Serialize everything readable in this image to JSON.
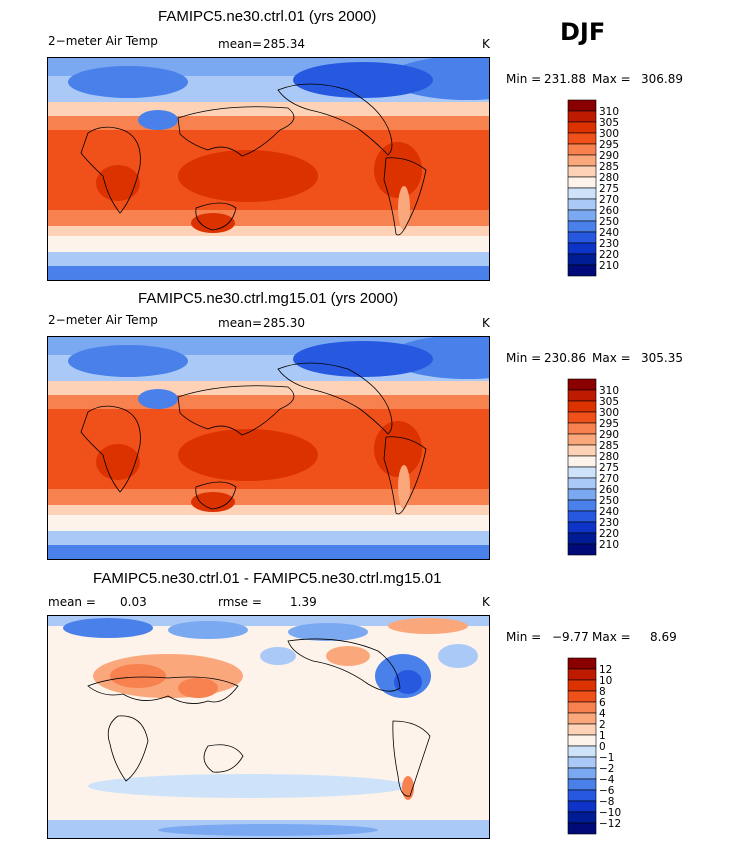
{
  "season": "DJF",
  "panels": [
    {
      "title": "FAMIPC5.ne30.ctrl.01 (yrs 2000)",
      "variable": "2−meter Air Temp",
      "stat1_label": "mean=",
      "stat1_value": "285.34",
      "stat2_label": "",
      "stat2_value": "",
      "units": "K",
      "min_label": "Min =",
      "min_value": "231.88",
      "max_label": "Max =",
      "max_value": "306.89",
      "colorbar_labels": [
        "310",
        "305",
        "300",
        "295",
        "290",
        "285",
        "280",
        "275",
        "270",
        "260",
        "250",
        "240",
        "230",
        "220",
        "210"
      ],
      "colorbar_colors": [
        "#8a0000",
        "#be1a00",
        "#dc3200",
        "#f05019",
        "#f7814f",
        "#fba77c",
        "#fdd2b7",
        "#fdf3ea",
        "#cee3fa",
        "#aac9f7",
        "#7aa8f1",
        "#4a80ea",
        "#2659e0",
        "#0d33c7",
        "#001c95",
        "#000a78"
      ]
    },
    {
      "title": "FAMIPC5.ne30.ctrl.mg15.01 (yrs 2000)",
      "variable": "2−meter Air Temp",
      "stat1_label": "mean=",
      "stat1_value": "285.30",
      "stat2_label": "",
      "stat2_value": "",
      "units": "K",
      "min_label": "Min =",
      "min_value": "230.86",
      "max_label": "Max =",
      "max_value": "305.35",
      "colorbar_labels": [
        "310",
        "305",
        "300",
        "295",
        "290",
        "285",
        "280",
        "275",
        "270",
        "260",
        "250",
        "240",
        "230",
        "220",
        "210"
      ],
      "colorbar_colors": [
        "#8a0000",
        "#be1a00",
        "#dc3200",
        "#f05019",
        "#f7814f",
        "#fba77c",
        "#fdd2b7",
        "#fdf3ea",
        "#cee3fa",
        "#aac9f7",
        "#7aa8f1",
        "#4a80ea",
        "#2659e0",
        "#0d33c7",
        "#001c95",
        "#000a78"
      ]
    },
    {
      "title": "FAMIPC5.ne30.ctrl.01 - FAMIPC5.ne30.ctrl.mg15.01",
      "variable": "",
      "stat1_label": "mean =",
      "stat1_value": "0.03",
      "stat2_label": "rmse =",
      "stat2_value": "1.39",
      "units": "K",
      "min_label": "Min =",
      "min_value": "−9.77",
      "max_label": "Max =",
      "max_value": "8.69",
      "colorbar_labels": [
        "12",
        "10",
        "8",
        "6",
        "4",
        "2",
        "1",
        "0",
        "−1",
        "−2",
        "−4",
        "−6",
        "−8",
        "−10",
        "−12"
      ],
      "colorbar_colors": [
        "#8a0000",
        "#be1a00",
        "#dc3200",
        "#f05019",
        "#f7814f",
        "#fba77c",
        "#fdd2b7",
        "#fdf3ea",
        "#cee3fa",
        "#aac9f7",
        "#7aa8f1",
        "#4a80ea",
        "#2659e0",
        "#0d33c7",
        "#001c95",
        "#000a78"
      ]
    }
  ],
  "chart_data": [
    {
      "type": "heatmap",
      "title": "FAMIPC5.ne30.ctrl.01 (yrs 2000)",
      "variable": "2-meter Air Temp",
      "units": "K",
      "season": "DJF",
      "mean": 285.34,
      "min": 231.88,
      "max": 306.89,
      "contour_levels": [
        210,
        220,
        230,
        240,
        250,
        260,
        270,
        275,
        280,
        285,
        290,
        295,
        300,
        305,
        310
      ]
    },
    {
      "type": "heatmap",
      "title": "FAMIPC5.ne30.ctrl.mg15.01 (yrs 2000)",
      "variable": "2-meter Air Temp",
      "units": "K",
      "season": "DJF",
      "mean": 285.3,
      "min": 230.86,
      "max": 305.35,
      "contour_levels": [
        210,
        220,
        230,
        240,
        250,
        260,
        270,
        275,
        280,
        285,
        290,
        295,
        300,
        305,
        310
      ]
    },
    {
      "type": "heatmap",
      "title": "FAMIPC5.ne30.ctrl.01 - FAMIPC5.ne30.ctrl.mg15.01",
      "units": "K",
      "season": "DJF",
      "mean": 0.03,
      "rmse": 1.39,
      "min": -9.77,
      "max": 8.69,
      "contour_levels": [
        -12,
        -10,
        -8,
        -6,
        -4,
        -2,
        -1,
        0,
        1,
        2,
        4,
        6,
        8,
        10,
        12
      ]
    }
  ]
}
